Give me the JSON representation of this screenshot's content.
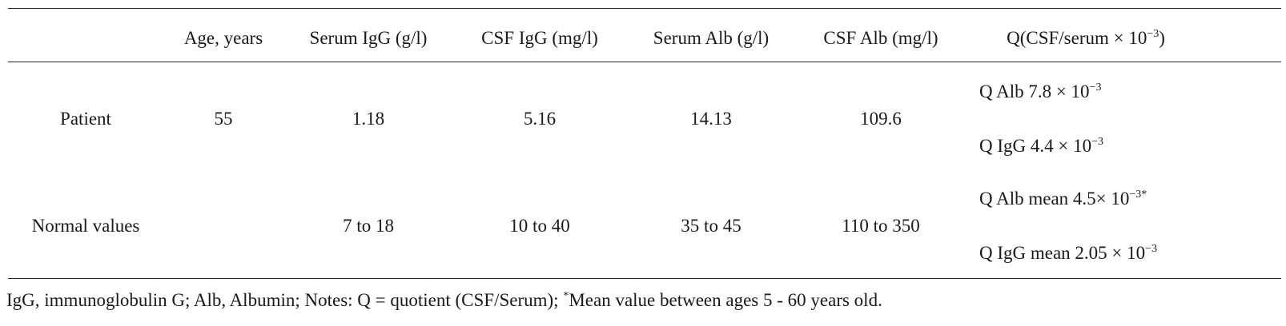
{
  "table": {
    "headers": {
      "age": "Age, years",
      "serum_igg": "Serum IgG (g/l)",
      "csf_igg": "CSF IgG (mg/l)",
      "serum_alb": "Serum Alb (g/l)",
      "csf_alb": "CSF Alb (mg/l)",
      "q_prefix": "Q(CSF/serum × 10",
      "q_exp": "−3",
      "q_suffix": ")"
    },
    "rows": [
      {
        "label": "Patient",
        "age": "55",
        "serum_igg": "1.18",
        "csf_igg": "5.16",
        "serum_alb": "14.13",
        "csf_alb": "109.6",
        "q_alb": "Q Alb 7.8 × 10",
        "q_alb_exp": "−3",
        "q_igg": "Q IgG 4.4 × 10",
        "q_igg_exp": "−3"
      },
      {
        "label": "Normal values",
        "age": "",
        "serum_igg": "7 to 18",
        "csf_igg": "10 to 40",
        "serum_alb": "35 to 45",
        "csf_alb": "110 to 350",
        "q_alb": "Q Alb mean 4.5× 10",
        "q_alb_exp": "−3*",
        "q_igg": "Q IgG mean 2.05 × 10",
        "q_igg_exp": "−3"
      }
    ]
  },
  "note": {
    "text_a": "IgG, immunoglobulin G; Alb, Albumin; Notes: Q = quotient (CSF/Serum); ",
    "star": "*",
    "text_b": "Mean value between ages 5 - 60 years old."
  }
}
